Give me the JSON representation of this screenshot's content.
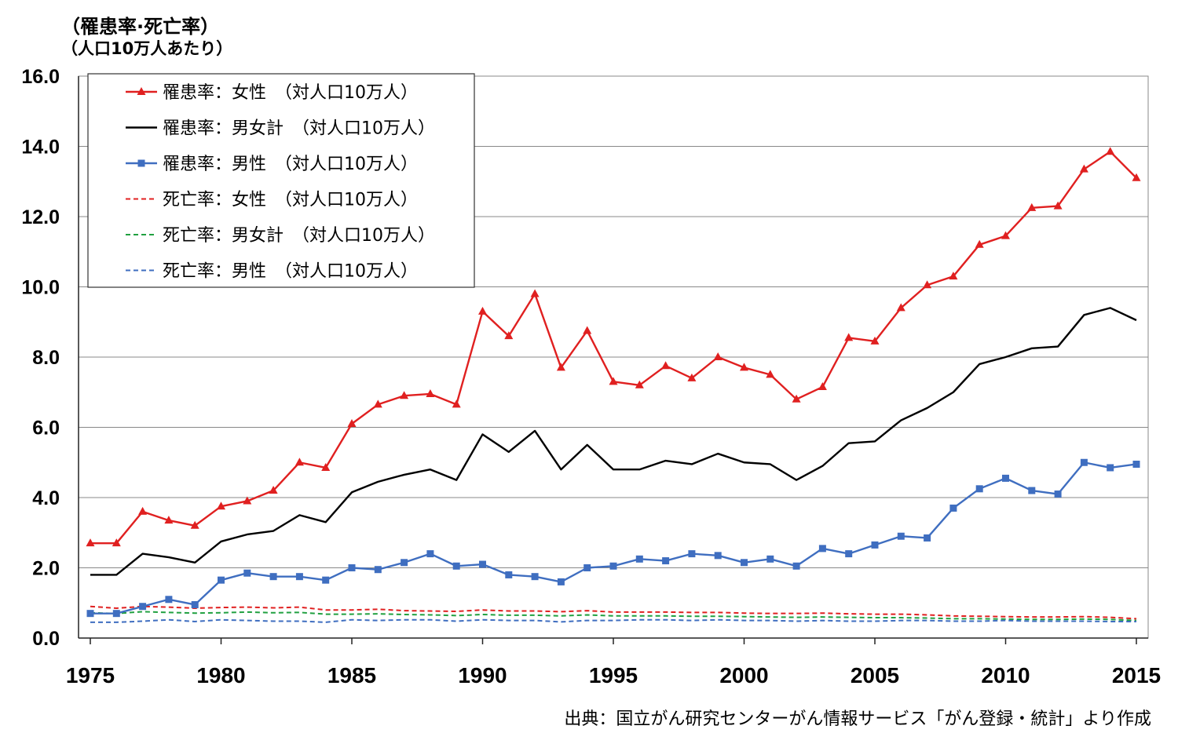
{
  "chart_data": {
    "type": "line",
    "ylabel_line1": "（罹患率·死亡率）",
    "ylabel_line2": "（人口10万人あたり）",
    "ylim": [
      0,
      16
    ],
    "yticks": [
      "0.0",
      "2.0",
      "4.0",
      "6.0",
      "8.0",
      "10.0",
      "12.0",
      "14.0",
      "16.0"
    ],
    "xlim": [
      1975,
      2015
    ],
    "xticks": [
      "1975",
      "1980",
      "1985",
      "1990",
      "1995",
      "2000",
      "2005",
      "2010",
      "2015"
    ],
    "x": [
      1975,
      1976,
      1977,
      1978,
      1979,
      1980,
      1981,
      1982,
      1983,
      1984,
      1985,
      1986,
      1987,
      1988,
      1989,
      1990,
      1991,
      1992,
      1993,
      1994,
      1995,
      1996,
      1997,
      1998,
      1999,
      2000,
      2001,
      2002,
      2003,
      2004,
      2005,
      2006,
      2007,
      2008,
      2009,
      2010,
      2011,
      2012,
      2013,
      2014,
      2015
    ],
    "legend_position": "top-left",
    "grid": "horizontal",
    "series": [
      {
        "name": "罹患率：女性　（対人口10万人）",
        "color": "#e02020",
        "style": "solid",
        "marker": "triangle",
        "values": [
          2.7,
          2.7,
          3.6,
          3.35,
          3.2,
          3.75,
          3.9,
          4.2,
          5.0,
          4.85,
          6.1,
          6.65,
          6.9,
          6.95,
          6.65,
          9.3,
          8.6,
          9.8,
          7.7,
          8.75,
          7.3,
          7.2,
          7.75,
          7.4,
          8.0,
          7.7,
          7.5,
          6.8,
          7.15,
          8.55,
          8.45,
          9.4,
          10.05,
          10.3,
          11.2,
          11.45,
          12.25,
          12.3,
          13.35,
          13.85,
          13.1
        ]
      },
      {
        "name": "罹患率：男女計　（対人口10万人）",
        "color": "#000000",
        "style": "solid",
        "marker": "none",
        "values": [
          1.8,
          1.8,
          2.4,
          2.3,
          2.15,
          2.75,
          2.95,
          3.05,
          3.5,
          3.3,
          4.15,
          4.45,
          4.65,
          4.8,
          4.5,
          5.8,
          5.3,
          5.9,
          4.8,
          5.5,
          4.8,
          4.8,
          5.05,
          4.95,
          5.25,
          5.0,
          4.95,
          4.5,
          4.9,
          5.55,
          5.6,
          6.2,
          6.55,
          7.0,
          7.8,
          8.0,
          8.25,
          8.3,
          9.2,
          9.4,
          9.05
        ]
      },
      {
        "name": "罹患率：男性　（対人口10万人）",
        "color": "#3f6ec0",
        "style": "solid",
        "marker": "square",
        "values": [
          0.7,
          0.7,
          0.9,
          1.1,
          0.95,
          1.65,
          1.85,
          1.75,
          1.75,
          1.65,
          2.0,
          1.95,
          2.15,
          2.4,
          2.05,
          2.1,
          1.8,
          1.75,
          1.6,
          2.0,
          2.05,
          2.25,
          2.2,
          2.4,
          2.35,
          2.15,
          2.25,
          2.05,
          2.55,
          2.4,
          2.65,
          2.9,
          2.85,
          3.7,
          4.25,
          4.55,
          4.2,
          4.1,
          5.0,
          4.85,
          4.95
        ]
      },
      {
        "name": "死亡率：女性　（対人口10万人）",
        "color": "#e02020",
        "style": "dashed",
        "marker": "none",
        "values": [
          0.9,
          0.85,
          0.9,
          0.88,
          0.85,
          0.87,
          0.88,
          0.86,
          0.88,
          0.8,
          0.8,
          0.82,
          0.78,
          0.77,
          0.76,
          0.8,
          0.77,
          0.77,
          0.75,
          0.78,
          0.74,
          0.74,
          0.74,
          0.73,
          0.73,
          0.71,
          0.7,
          0.7,
          0.71,
          0.69,
          0.68,
          0.68,
          0.66,
          0.63,
          0.62,
          0.61,
          0.6,
          0.6,
          0.61,
          0.59,
          0.55
        ]
      },
      {
        "name": "死亡率：男女計　（対人口10万人）",
        "color": "#20a040",
        "style": "dashed",
        "marker": "none",
        "values": [
          0.72,
          0.7,
          0.75,
          0.73,
          0.71,
          0.72,
          0.74,
          0.72,
          0.73,
          0.68,
          0.68,
          0.69,
          0.67,
          0.66,
          0.64,
          0.67,
          0.65,
          0.65,
          0.63,
          0.66,
          0.63,
          0.63,
          0.63,
          0.62,
          0.62,
          0.61,
          0.6,
          0.59,
          0.6,
          0.59,
          0.58,
          0.58,
          0.57,
          0.55,
          0.55,
          0.54,
          0.53,
          0.53,
          0.54,
          0.53,
          0.5
        ]
      },
      {
        "name": "死亡率：男性　（対人口10万人）",
        "color": "#3f6ec0",
        "style": "dashed",
        "marker": "none",
        "values": [
          0.45,
          0.45,
          0.48,
          0.52,
          0.47,
          0.52,
          0.5,
          0.48,
          0.48,
          0.45,
          0.52,
          0.5,
          0.52,
          0.52,
          0.48,
          0.52,
          0.5,
          0.5,
          0.46,
          0.5,
          0.5,
          0.52,
          0.52,
          0.5,
          0.52,
          0.5,
          0.5,
          0.48,
          0.5,
          0.48,
          0.48,
          0.5,
          0.5,
          0.48,
          0.48,
          0.5,
          0.48,
          0.48,
          0.48,
          0.47,
          0.47
        ]
      }
    ]
  },
  "source_note": "出典：国立がん研究センターがん情報サービス「がん登録・統計」より作成"
}
